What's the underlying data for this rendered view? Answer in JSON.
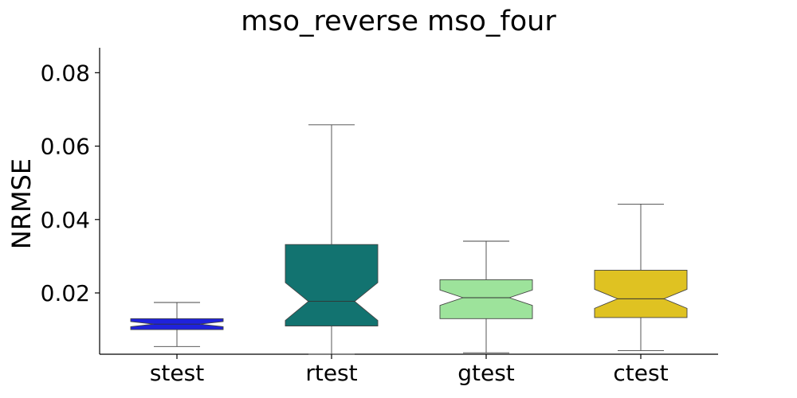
{
  "chart_data": {
    "type": "boxplot",
    "title": "mso_reverse mso_four",
    "xlabel": "",
    "ylabel": "NRMSE",
    "ylim": [
      0.0033,
      0.0868
    ],
    "yticks": [
      0.02,
      0.04,
      0.06,
      0.08
    ],
    "ytick_labels": [
      "0.02",
      "0.04",
      "0.06",
      "0.08"
    ],
    "notched": true,
    "grid": false,
    "categories": [
      "stest",
      "rtest",
      "gtest",
      "ctest"
    ],
    "boxes": [
      {
        "label": "stest",
        "whisker_low": 0.0054,
        "q1": 0.01,
        "median": 0.0115,
        "q3": 0.013,
        "whisker_high": 0.0174,
        "notch_low": 0.0108,
        "notch_high": 0.0122,
        "color": "#1f22dc"
      },
      {
        "label": "rtest",
        "whisker_low": 0.0033,
        "q1": 0.011,
        "median": 0.0177,
        "q3": 0.0332,
        "whisker_high": 0.0658,
        "notch_low": 0.0125,
        "notch_high": 0.0228,
        "color": "#127370"
      },
      {
        "label": "gtest",
        "whisker_low": 0.0037,
        "q1": 0.013,
        "median": 0.0187,
        "q3": 0.0236,
        "whisker_high": 0.0341,
        "notch_low": 0.0166,
        "notch_high": 0.0208,
        "color": "#9de39b"
      },
      {
        "label": "ctest",
        "whisker_low": 0.0043,
        "q1": 0.0133,
        "median": 0.0184,
        "q3": 0.0262,
        "whisker_high": 0.0442,
        "notch_low": 0.0158,
        "notch_high": 0.021,
        "color": "#dfc222"
      }
    ]
  }
}
